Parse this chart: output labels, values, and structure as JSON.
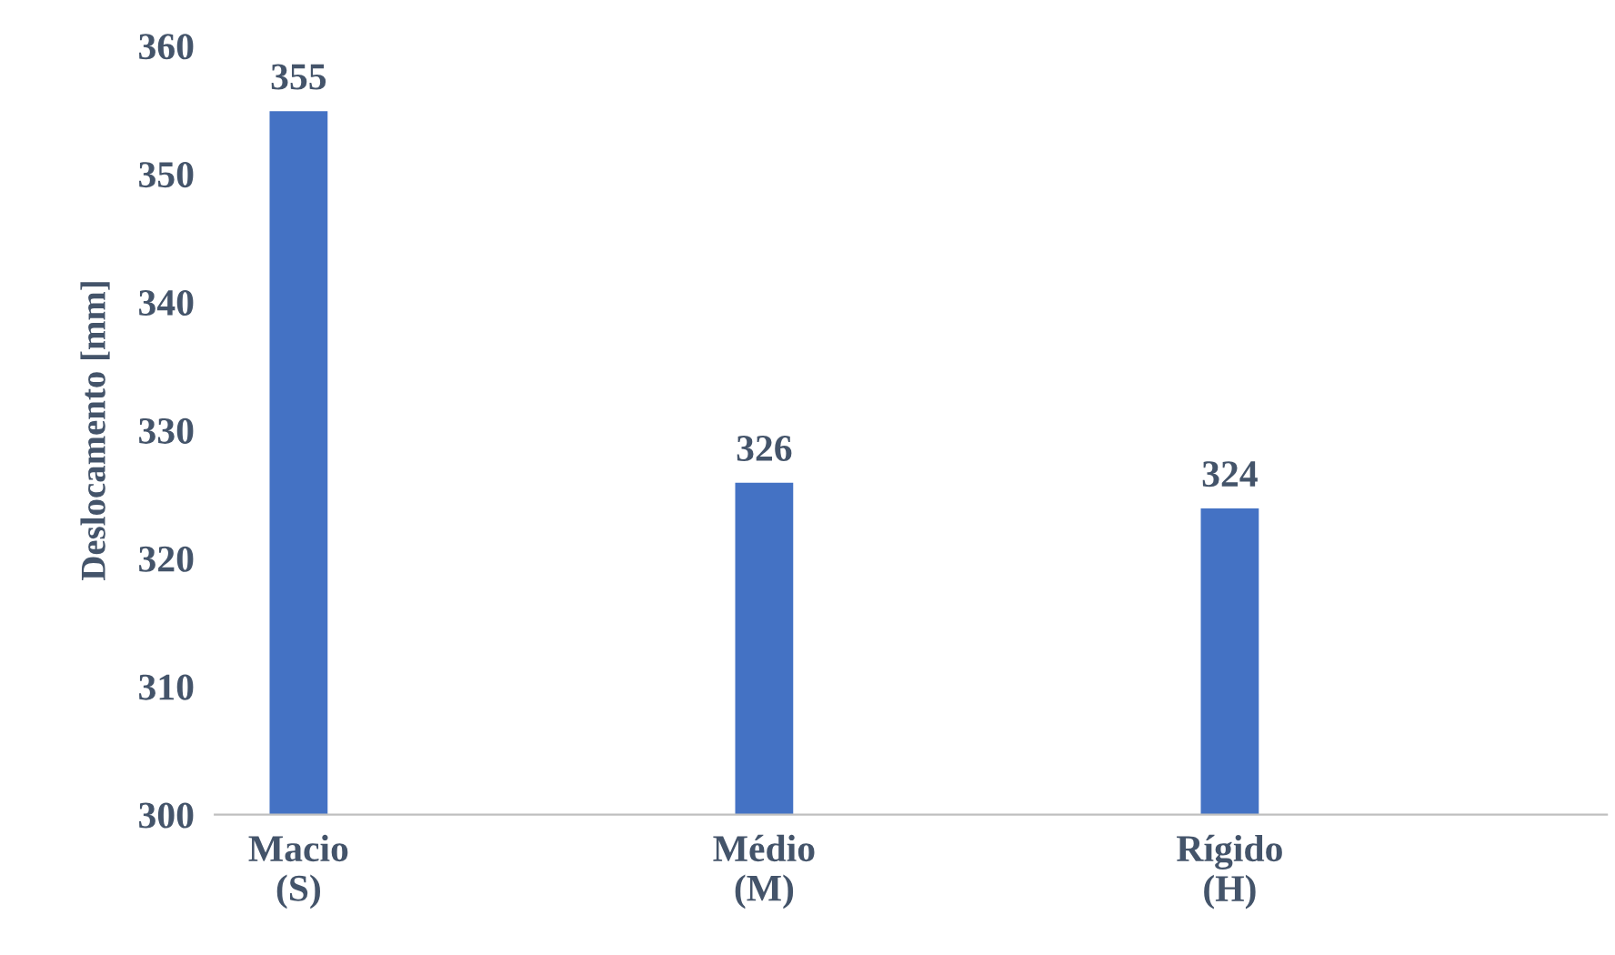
{
  "chart_data": {
    "type": "bar",
    "ylabel": "Deslocamento [mm]",
    "categories": [
      "Macio\n(S)",
      "Médio\n(M)",
      "Rígido\n(H)"
    ],
    "values": [
      355,
      326,
      324
    ],
    "color": "#4472c4",
    "ylim": [
      300,
      360
    ],
    "yticks": [
      300,
      310,
      320,
      330,
      340,
      350,
      360
    ],
    "data_labels": true,
    "grid": false
  }
}
